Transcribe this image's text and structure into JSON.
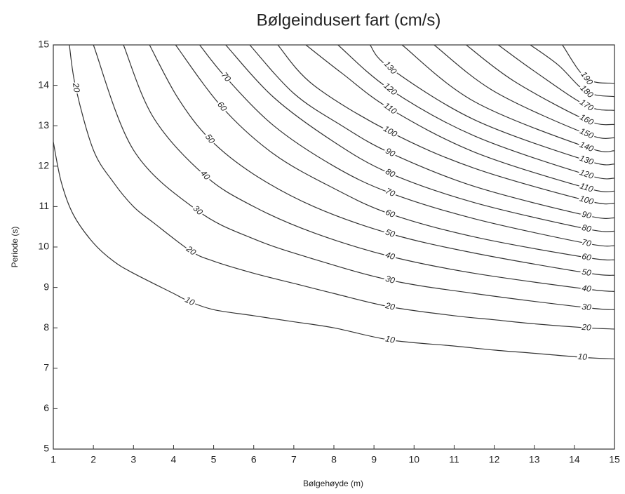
{
  "chart_data": {
    "type": "contour",
    "title": "Bølgeindusert fart (cm/s)",
    "x_label": "Bølgehøyde (m)",
    "y_label": "Periode (s)",
    "xlim": [
      1,
      15
    ],
    "xticks": [
      1,
      2,
      3,
      4,
      5,
      6,
      7,
      8,
      9,
      10,
      11,
      12,
      13,
      14,
      15
    ],
    "ylim": [
      5,
      15
    ],
    "yticks": [
      5,
      6,
      7,
      8,
      9,
      10,
      11,
      12,
      13,
      14,
      15
    ],
    "color": "#333333",
    "contours": [
      {
        "level": 10,
        "x": [
          1,
          1.2,
          1.5,
          2,
          2.5,
          3,
          4,
          4.4,
          5,
          6,
          7,
          8,
          9.4,
          11,
          12,
          13,
          14.2,
          15
        ],
        "y": [
          12.6,
          11.6,
          10.8,
          10.1,
          9.65,
          9.35,
          8.85,
          8.65,
          8.45,
          8.3,
          8.15,
          8.0,
          7.7,
          7.55,
          7.45,
          7.37,
          7.27,
          7.23
        ],
        "labels_x": [
          4.4,
          9.4,
          14.2
        ]
      },
      {
        "level": 20,
        "x": [
          1.4,
          1.56,
          2,
          2.5,
          3,
          3.5,
          4.43,
          5,
          6,
          7,
          8,
          9.4,
          11,
          12,
          13,
          14.3,
          15
        ],
        "y": [
          15,
          13.94,
          12.4,
          11.6,
          11.0,
          10.6,
          9.9,
          9.65,
          9.35,
          9.1,
          8.85,
          8.52,
          8.3,
          8.2,
          8.1,
          8.0,
          7.97
        ],
        "labels_x": [
          1.56,
          4.43,
          9.4,
          14.3
        ]
      },
      {
        "level": 30,
        "x": [
          2.0,
          3,
          4.6,
          6,
          7.5,
          9.4,
          11.5,
          14.3,
          15
        ],
        "y": [
          15,
          12.4,
          10.9,
          10.2,
          9.7,
          9.18,
          8.85,
          8.5,
          8.45
        ],
        "labels_x": [
          4.6,
          9.4,
          14.3
        ]
      },
      {
        "level": 40,
        "x": [
          2.75,
          3.5,
          4.78,
          6,
          7.5,
          9.4,
          11.5,
          14.3,
          15
        ],
        "y": [
          15,
          13.2,
          11.77,
          11.0,
          10.35,
          9.77,
          9.35,
          8.96,
          8.9
        ],
        "labels_x": [
          4.78,
          9.4,
          14.3
        ]
      },
      {
        "level": 50,
        "x": [
          3.4,
          4.1,
          4.9,
          6,
          7.5,
          9.4,
          11.5,
          14.3,
          15
        ],
        "y": [
          15,
          13.7,
          12.67,
          11.8,
          11.0,
          10.33,
          9.85,
          9.36,
          9.3
        ],
        "labels_x": [
          4.9,
          9.4,
          14.3
        ]
      },
      {
        "level": 60,
        "x": [
          4.05,
          5.2,
          6.5,
          8,
          9.4,
          11.5,
          14.3,
          15
        ],
        "y": [
          15,
          13.47,
          12.3,
          11.45,
          10.82,
          10.25,
          9.74,
          9.68
        ],
        "labels_x": [
          5.2,
          9.4,
          14.3
        ]
      },
      {
        "level": 70,
        "x": [
          4.65,
          5.3,
          6.5,
          8,
          9.4,
          11.5,
          14.3,
          15
        ],
        "y": [
          15,
          14.2,
          13.0,
          12.0,
          11.34,
          10.7,
          10.09,
          10.03
        ],
        "labels_x": [
          5.3,
          9.4,
          14.3
        ]
      },
      {
        "level": 80,
        "x": [
          5.3,
          6.5,
          8,
          9.4,
          11.5,
          14.3,
          15
        ],
        "y": [
          15,
          13.7,
          12.6,
          11.82,
          11.1,
          10.45,
          10.39
        ],
        "labels_x": [
          9.4,
          14.3
        ]
      },
      {
        "level": 90,
        "x": [
          5.9,
          7,
          8.2,
          9.4,
          11.5,
          14.3,
          15
        ],
        "y": [
          15,
          13.8,
          13.0,
          12.33,
          11.5,
          10.78,
          10.72
        ],
        "labels_x": [
          9.4,
          14.3
        ]
      },
      {
        "level": 100,
        "x": [
          6.6,
          7.5,
          9.4,
          11.5,
          14.3,
          15
        ],
        "y": [
          15,
          14.0,
          12.85,
          11.95,
          11.15,
          11.08
        ],
        "labels_x": [
          9.4,
          14.3
        ]
      },
      {
        "level": 110,
        "x": [
          7.3,
          8.2,
          9.4,
          11.5,
          14.3,
          15
        ],
        "y": [
          15,
          14.3,
          13.42,
          12.35,
          11.46,
          11.38
        ],
        "labels_x": [
          9.4,
          14.3
        ]
      },
      {
        "level": 120,
        "x": [
          8.1,
          9.4,
          11.5,
          14.3,
          15
        ],
        "y": [
          15,
          13.9,
          12.75,
          11.79,
          11.7
        ],
        "labels_x": [
          9.4,
          14.3
        ]
      },
      {
        "level": 130,
        "x": [
          8.9,
          9.4,
          11.5,
          14.3,
          15
        ],
        "y": [
          15,
          14.43,
          13.15,
          12.14,
          12.05
        ],
        "labels_x": [
          9.4,
          14.3
        ]
      },
      {
        "level": 140,
        "x": [
          9.7,
          11.5,
          14.3,
          15
        ],
        "y": [
          15,
          13.6,
          12.47,
          12.38
        ],
        "labels_x": [
          14.3
        ]
      },
      {
        "level": 150,
        "x": [
          10.5,
          12,
          14.3,
          15
        ],
        "y": [
          15,
          13.85,
          12.8,
          12.7
        ],
        "labels_x": [
          14.3
        ]
      },
      {
        "level": 160,
        "x": [
          11.3,
          12.5,
          14.3,
          15
        ],
        "y": [
          15,
          14.1,
          13.14,
          13.03
        ],
        "labels_x": [
          14.3
        ]
      },
      {
        "level": 170,
        "x": [
          12.1,
          13,
          14.3,
          15
        ],
        "y": [
          15,
          14.35,
          13.5,
          13.38
        ],
        "labels_x": [
          14.3
        ]
      },
      {
        "level": 180,
        "x": [
          12.9,
          13.6,
          14.3,
          15
        ],
        "y": [
          15,
          14.5,
          13.84,
          13.72
        ],
        "labels_x": [
          14.3
        ]
      },
      {
        "level": 190,
        "x": [
          13.7,
          14.3,
          15
        ],
        "y": [
          15,
          14.17,
          14.05
        ],
        "labels_x": [
          14.3
        ]
      }
    ]
  }
}
